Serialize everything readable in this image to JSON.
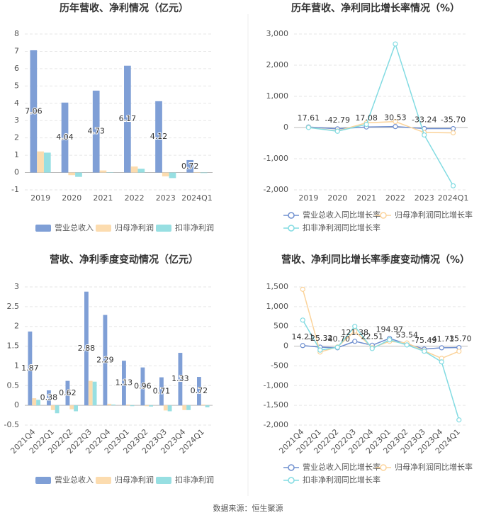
{
  "chart_data": [
    {
      "type": "bar",
      "title": "历年营收、净利情况（亿元）",
      "categories": [
        "2019",
        "2020",
        "2021",
        "2022",
        "2023",
        "2024Q1"
      ],
      "series": [
        {
          "name": "营业总收入",
          "color": "#7f9fd6",
          "values": [
            7.06,
            4.04,
            4.73,
            6.17,
            4.12,
            0.72
          ],
          "labels": true
        },
        {
          "name": "归母净利润",
          "color": "#fcdcaf",
          "values": [
            1.22,
            -0.15,
            0.12,
            0.35,
            -0.22,
            0.02
          ]
        },
        {
          "name": "扣非净利润",
          "color": "#97dfe2",
          "values": [
            1.15,
            -0.25,
            0.02,
            0.22,
            -0.32,
            -0.03
          ]
        }
      ],
      "ylim": [
        -1,
        8
      ],
      "yticks": [
        -1,
        0,
        1,
        2,
        3,
        4,
        5,
        6,
        7,
        8
      ],
      "grid": true
    },
    {
      "type": "line",
      "title": "历年营收、净利同比增长率情况（%）",
      "categories": [
        "2019",
        "2020",
        "2021",
        "2022",
        "2023",
        "2024Q1"
      ],
      "series": [
        {
          "name": "营业总收入同比增长率",
          "color": "#6f8fcf",
          "values": [
            17.61,
            -42.79,
            17.08,
            30.53,
            -33.24,
            -35.7
          ],
          "value_labels": [
            "17.61",
            "-42.79",
            "17.08",
            "30.53",
            "-33.24",
            "-35.70"
          ],
          "labels": true
        },
        {
          "name": "归母净利润同比增长率",
          "color": "#fbd39a",
          "values": [
            5,
            -110,
            150,
            190,
            -160,
            -170
          ]
        },
        {
          "name": "扣非净利润同比增长率",
          "color": "#82dbe2",
          "values": [
            0,
            -120,
            100,
            2680,
            -240,
            -1870
          ]
        }
      ],
      "ylim": [
        -2000,
        3000
      ],
      "yticks": [
        {
          "value": -2000,
          "label": "-2,000"
        },
        {
          "value": -1000,
          "label": "-1,000"
        },
        0,
        {
          "value": 1000,
          "label": "1,000"
        },
        {
          "value": 2000,
          "label": "2,000"
        },
        {
          "value": 3000,
          "label": "3,000"
        }
      ],
      "grid": true
    },
    {
      "type": "bar",
      "title": "营收、净利季度变动情况（亿元）",
      "categories": [
        "2021Q4",
        "2022Q1",
        "2022Q2",
        "2022Q3",
        "2022Q4",
        "2023Q1",
        "2023Q2",
        "2023Q3",
        "2023Q4",
        "2024Q1"
      ],
      "series": [
        {
          "name": "营业总收入",
          "color": "#7f9fd6",
          "values": [
            1.87,
            0.38,
            0.62,
            2.88,
            2.29,
            1.13,
            0.96,
            0.71,
            1.33,
            0.72
          ],
          "labels": true
        },
        {
          "name": "归母净利润",
          "color": "#fcdcaf",
          "values": [
            0.18,
            -0.12,
            -0.1,
            0.62,
            0.04,
            0.02,
            -0.02,
            -0.13,
            -0.12,
            0.02
          ]
        },
        {
          "name": "扣非净利润",
          "color": "#97dfe2",
          "values": [
            0.14,
            -0.2,
            -0.15,
            0.6,
            0.02,
            -0.02,
            -0.03,
            -0.15,
            -0.12,
            -0.05
          ]
        }
      ],
      "ylim": [
        -0.5,
        3
      ],
      "yticks": [
        -0.5,
        0,
        0.5,
        1,
        1.5,
        2,
        2.5,
        3
      ],
      "grid": true
    },
    {
      "type": "line",
      "title": "营收、净利同比增长率季度变动情况（%）",
      "categories": [
        "2021Q4",
        "2022Q1",
        "2022Q2",
        "2022Q3",
        "2022Q4",
        "2023Q1",
        "2023Q2",
        "2023Q3",
        "2023Q4",
        "2024Q1"
      ],
      "series": [
        {
          "name": "营业总收入同比增长率",
          "color": "#6f8fcf",
          "values": [
            14.21,
            -25.32,
            -40.7,
            121.38,
            22.51,
            194.97,
            53.54,
            -75.49,
            -41.71,
            -35.7
          ],
          "value_labels": [
            "14.21",
            "-25.32",
            "-40.70",
            "121.38",
            "22.51",
            "194.97",
            "53.54",
            "-75.49",
            "-41.71",
            "-35.70"
          ],
          "labels": true
        },
        {
          "name": "归母净利润同比增长率",
          "color": "#fbd39a",
          "values": [
            1440,
            -150,
            -20,
            380,
            -40,
            120,
            80,
            -120,
            -310,
            -130
          ]
        },
        {
          "name": "扣非净利润同比增长率",
          "color": "#82dbe2",
          "values": [
            660,
            -100,
            -30,
            500,
            -60,
            160,
            30,
            -130,
            -400,
            -1870
          ]
        }
      ],
      "ylim": [
        -2000,
        1500
      ],
      "yticks": [
        {
          "value": -2000,
          "label": "-2,000"
        },
        {
          "value": -1500,
          "label": "-1,500"
        },
        {
          "value": -1000,
          "label": "-1,000"
        },
        -500,
        0,
        500,
        {
          "value": 1000,
          "label": "1,000"
        },
        {
          "value": 1500,
          "label": "1,500"
        }
      ],
      "grid": true
    }
  ],
  "source": "数据来源：恒生聚源"
}
